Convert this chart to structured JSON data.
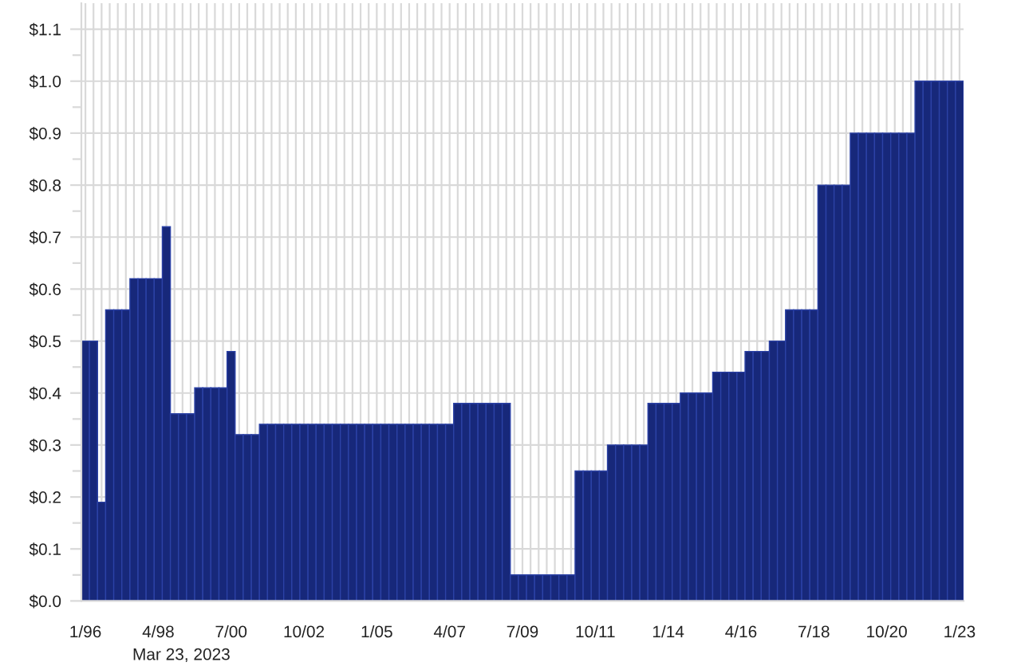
{
  "chart_data": {
    "type": "bar",
    "categories": [
      "1/96",
      null,
      null,
      null,
      null,
      null,
      null,
      null,
      null,
      "4/98",
      null,
      null,
      null,
      null,
      null,
      null,
      null,
      null,
      "7/00",
      null,
      null,
      null,
      null,
      null,
      null,
      null,
      null,
      "10/02",
      null,
      null,
      null,
      null,
      null,
      null,
      null,
      null,
      "1/05",
      null,
      null,
      null,
      null,
      null,
      null,
      null,
      null,
      "4/07",
      null,
      null,
      null,
      null,
      null,
      null,
      null,
      null,
      "7/09",
      null,
      null,
      null,
      null,
      null,
      null,
      null,
      null,
      "10/11",
      null,
      null,
      null,
      null,
      null,
      null,
      null,
      null,
      "1/14",
      null,
      null,
      null,
      null,
      null,
      null,
      null,
      null,
      "4/16",
      null,
      null,
      null,
      null,
      null,
      null,
      null,
      null,
      "7/18",
      null,
      null,
      null,
      null,
      null,
      null,
      null,
      null,
      "10/20",
      null,
      null,
      null,
      null,
      null,
      null,
      null,
      null,
      "1/23"
    ],
    "values": [
      0.5,
      0.5,
      0.19,
      0.56,
      0.56,
      0.56,
      0.62,
      0.62,
      0.62,
      0.62,
      0.72,
      0.36,
      0.36,
      0.36,
      0.41,
      0.41,
      0.41,
      0.41,
      0.48,
      0.32,
      0.32,
      0.32,
      0.34,
      0.34,
      0.34,
      0.34,
      0.34,
      0.34,
      0.34,
      0.34,
      0.34,
      0.34,
      0.34,
      0.34,
      0.34,
      0.34,
      0.34,
      0.34,
      0.34,
      0.34,
      0.34,
      0.34,
      0.34,
      0.34,
      0.34,
      0.34,
      0.38,
      0.38,
      0.38,
      0.38,
      0.38,
      0.38,
      0.38,
      0.05,
      0.05,
      0.05,
      0.05,
      0.05,
      0.05,
      0.05,
      0.05,
      0.25,
      0.25,
      0.25,
      0.25,
      0.3,
      0.3,
      0.3,
      0.3,
      0.3,
      0.38,
      0.38,
      0.38,
      0.38,
      0.4,
      0.4,
      0.4,
      0.4,
      0.44,
      0.44,
      0.44,
      0.44,
      0.48,
      0.48,
      0.48,
      0.5,
      0.5,
      0.56,
      0.56,
      0.56,
      0.56,
      0.8,
      0.8,
      0.8,
      0.8,
      0.9,
      0.9,
      0.9,
      0.9,
      0.9,
      0.9,
      0.9,
      0.9,
      1.0,
      1.0,
      1.0,
      1.0,
      1.0,
      1.0
    ],
    "color": "#17287a",
    "ylim": [
      0,
      1.15
    ],
    "yticks": [
      {
        "value": 0,
        "label": "$0.0"
      },
      {
        "value": 0.05,
        "label": null
      },
      {
        "value": 0.1,
        "label": "$0.1"
      },
      {
        "value": 0.15,
        "label": null
      },
      {
        "value": 0.2,
        "label": "$0.2"
      },
      {
        "value": 0.25,
        "label": null
      },
      {
        "value": 0.3,
        "label": "$0.3"
      },
      {
        "value": 0.35,
        "label": null
      },
      {
        "value": 0.4,
        "label": "$0.4"
      },
      {
        "value": 0.45,
        "label": null
      },
      {
        "value": 0.5,
        "label": "$0.5"
      },
      {
        "value": 0.55,
        "label": null
      },
      {
        "value": 0.6,
        "label": "$0.6"
      },
      {
        "value": 0.65,
        "label": null
      },
      {
        "value": 0.7,
        "label": "$0.7"
      },
      {
        "value": 0.75,
        "label": null
      },
      {
        "value": 0.8,
        "label": "$0.8"
      },
      {
        "value": 0.85,
        "label": null
      },
      {
        "value": 0.9,
        "label": "$0.9"
      },
      {
        "value": 0.95,
        "label": null
      },
      {
        "value": 1.0,
        "label": "$1.0"
      },
      {
        "value": 1.05,
        "label": null
      },
      {
        "value": 1.1,
        "label": "$1.1"
      }
    ],
    "grid": true,
    "annotations": [
      "Mar 23, 2023"
    ]
  }
}
